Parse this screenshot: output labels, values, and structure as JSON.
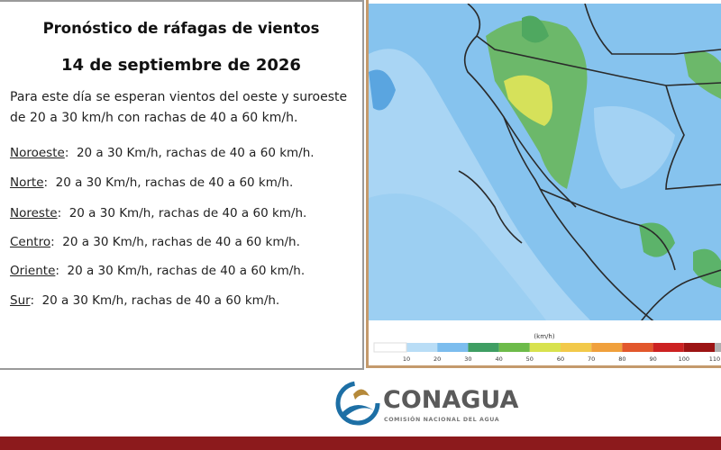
{
  "title": "Pronóstico de ráfagas de vientos",
  "date": "14 de septiembre  de 2026",
  "intro": [
    "Para este día se esperan vientos del oeste y suroeste",
    "de 20 a 30 km/h con rachas de 40 a 60 km/h."
  ],
  "regions": [
    {
      "name": "Noroeste",
      "detail": ":  20 a 30 Km/h, rachas de 40 a 60 km/h."
    },
    {
      "name": "Norte",
      "detail": ":  20 a 30 Km/h, rachas de 40 a 60 km/h."
    },
    {
      "name": "Noreste",
      "detail": ":  20 a 30 Km/h, rachas de 40 a 60 km/h."
    },
    {
      "name": "Centro",
      "detail": ":  20 a 30 Km/h, rachas de 40 a 60 km/h."
    },
    {
      "name": "Oriente",
      "detail": ":  20 a 30 Km/h, rachas de 40 a 60 km/h."
    },
    {
      "name": "Sur",
      "detail": ":  20 a 30 Km/h, rachas de 40 a 60 km/h."
    }
  ],
  "legend": {
    "unit": "(km/h)",
    "ticks": [
      10,
      20,
      30,
      40,
      50,
      60,
      70,
      80,
      90,
      100,
      110
    ],
    "colors": [
      "#b9ddf6",
      "#7cbdee",
      "#3f9e63",
      "#6dbb4a",
      "#d8e24e",
      "#f2c94a",
      "#f0a03c",
      "#e2572c",
      "#cc2222",
      "#9c1414",
      "#b0b0b0"
    ]
  },
  "brand": {
    "name": "CONAGUA",
    "subtitle": "COMISIÓN NACIONAL DEL AGUA"
  }
}
